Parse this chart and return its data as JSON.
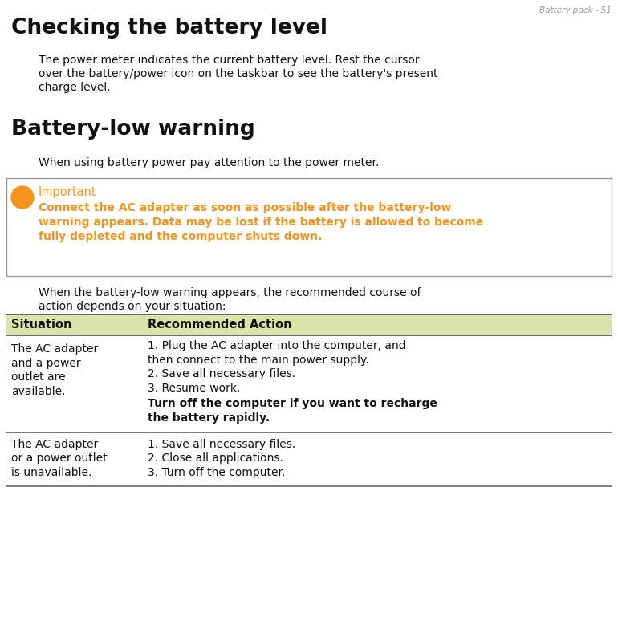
{
  "header_text": "Battery pack - 51",
  "title1": "Checking the battery level",
  "para1_line1": "The power meter indicates the current battery level. Rest the cursor",
  "para1_line2": "over the battery/power icon on the taskbar to see the battery's present",
  "para1_line3": "charge level.",
  "title2": "Battery-low warning",
  "para2": "When using battery power pay attention to the power meter.",
  "important_label": "Important",
  "important_body_line1": "Connect the AC adapter as soon as possible after the battery-low",
  "important_body_line2": "warning appears. Data may be lost if the battery is allowed to become",
  "important_body_line3": "fully depleted and the computer shuts down.",
  "para3_line1": "When the battery-low warning appears, the recommended course of",
  "para3_line2": "action depends on your situation:",
  "table_header_col1": "Situation",
  "table_header_col2": "Recommended Action",
  "row1_col1_lines": [
    "The AC adapter",
    "and a power",
    "outlet are",
    "available."
  ],
  "row1_col2_normal_lines": [
    "1. Plug the AC adapter into the computer, and",
    "then connect to the main power supply.",
    "2. Save all necessary files.",
    "3. Resume work."
  ],
  "row1_col2_bold_lines": [
    "Turn off the computer if you want to recharge",
    "the battery rapidly."
  ],
  "row2_col1_lines": [
    "The AC adapter",
    "or a power outlet",
    "is unavailable."
  ],
  "row2_col2_lines": [
    "1. Save all necessary files.",
    "2. Close all applications.",
    "3. Turn off the computer."
  ],
  "orange_color": "#F7941D",
  "header_color": "#999999",
  "table_header_bg": "#d8e4a8",
  "table_border_color": "#666666",
  "white": "#ffffff",
  "black": "#111111",
  "box_border_color": "#999999",
  "fig_width": 7.7,
  "fig_height": 7.84,
  "dpi": 100
}
